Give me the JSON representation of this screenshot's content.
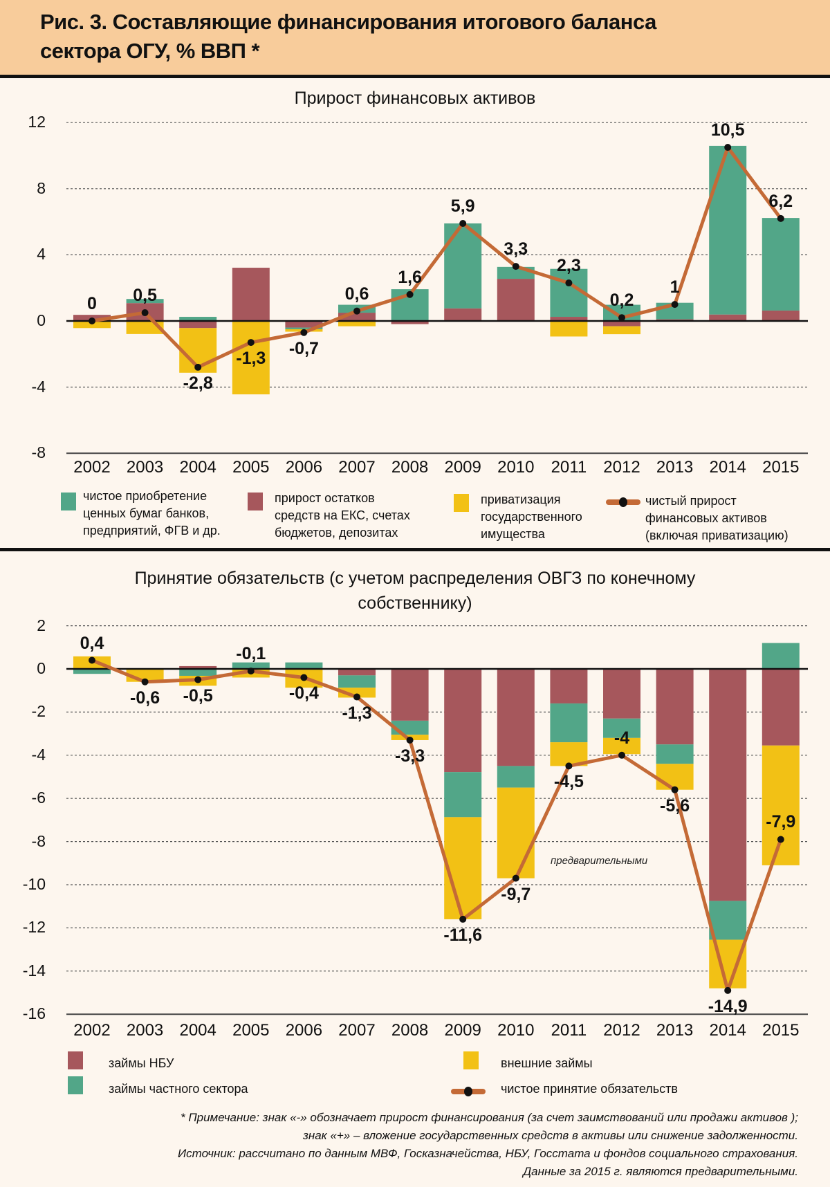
{
  "header": {
    "line1": "Рис. 3. Составляющие финансирования итогового баланса",
    "line2": "сектора ОГУ, % ВВП *"
  },
  "colors": {
    "green": "#52a688",
    "red": "#a6575c",
    "yellow": "#f2c115",
    "line": "#c46a36",
    "header_bg": "#f8cc9b",
    "bg": "#fdf6ee"
  },
  "chart_data": [
    {
      "type": "bar",
      "stacked": true,
      "title": "Прирост финансовых активов",
      "categories": [
        "2002",
        "2003",
        "2004",
        "2005",
        "2006",
        "2007",
        "2008",
        "2009",
        "2010",
        "2011",
        "2012",
        "2013",
        "2014",
        "2015"
      ],
      "ylim": [
        -8,
        12
      ],
      "yticks": [
        "12",
        "8",
        "4",
        "0",
        "-4",
        "-8"
      ],
      "ytick_values": [
        12,
        8,
        4,
        0,
        -4,
        -8
      ],
      "grid": true,
      "series": [
        {
          "name": "прирост остатков средств на ЕКС, счетах бюджетов, депозитах",
          "color": "red",
          "values": [
            0.37,
            1.08,
            -0.43,
            3.22,
            -0.4,
            0.5,
            -0.19,
            0.76,
            2.55,
            0.25,
            -0.32,
            0.1,
            0.39,
            0.63
          ]
        },
        {
          "name": "чистое приобретение ценных бумаг банков, предприятий, ФГВ и др.",
          "color": "green",
          "values": [
            0,
            0.25,
            0.25,
            0,
            -0.1,
            0.48,
            1.92,
            5.14,
            0.72,
            2.9,
            0.98,
            1.0,
            10.2,
            5.6
          ]
        },
        {
          "name": "приватизация государственного имущества",
          "color": "yellow",
          "values": [
            -0.43,
            -0.79,
            -2.7,
            -4.44,
            -0.15,
            -0.32,
            0,
            0,
            0,
            -0.94,
            -0.48,
            0,
            0,
            0
          ]
        }
      ],
      "line": {
        "name": "чистый прирост финансовых активов (включая приватизацию)",
        "values": [
          0,
          0.5,
          -2.8,
          -1.3,
          -0.7,
          0.6,
          1.6,
          5.9,
          3.3,
          2.3,
          0.2,
          1,
          10.5,
          6.2
        ],
        "labels": [
          "0",
          "0,5",
          "-2,8",
          "-1,3",
          "-0,7",
          "0,6",
          "1,6",
          "5,9",
          "3,3",
          "2,3",
          "0,2",
          "1",
          "10,5",
          "6,2"
        ]
      },
      "legend": [
        {
          "color": "green",
          "text": [
            "чистое приобретение",
            "ценных бумаг банков,",
            "предприятий, ФГВ и др."
          ]
        },
        {
          "color": "red",
          "text": [
            "прирост остатков",
            "средств на ЕКС, счетах",
            "бюджетов, депозитах"
          ]
        },
        {
          "color": "yellow",
          "text": [
            "приватизация",
            "государственного",
            "имущества"
          ]
        },
        {
          "color": "line",
          "text": [
            "чистый прирост",
            "финансовых активов",
            "(включая приватизацию)"
          ]
        }
      ],
      "legend_position": "bottom"
    },
    {
      "type": "bar",
      "stacked": true,
      "title_lines": [
        "Принятие обязательств (с учетом распределения ОВГЗ по конечному",
        "собственнику)"
      ],
      "categories": [
        "2002",
        "2003",
        "2004",
        "2005",
        "2006",
        "2007",
        "2008",
        "2009",
        "2010",
        "2011",
        "2012",
        "2013",
        "2014",
        "2015"
      ],
      "ylim": [
        -16,
        2
      ],
      "yticks": [
        "2",
        "0",
        "-2",
        "-4",
        "-6",
        "-8",
        "-10",
        "-12",
        "-14",
        "-16"
      ],
      "ytick_values": [
        2,
        0,
        -2,
        -4,
        -6,
        -8,
        -10,
        -12,
        -14,
        -16
      ],
      "grid": true,
      "series": [
        {
          "name": "займы НБУ",
          "color": "red",
          "values": [
            0,
            0,
            0.13,
            0,
            0,
            -0.3,
            -2.4,
            -4.78,
            -4.5,
            -1.6,
            -2.3,
            -3.5,
            -10.75,
            -3.55
          ]
        },
        {
          "name": "займы частного сектора",
          "color": "green",
          "values": [
            -0.23,
            0,
            -0.32,
            0.3,
            0.3,
            -0.57,
            -0.65,
            -2.09,
            -1.0,
            -1.8,
            -0.9,
            -0.9,
            -1.8,
            1.2
          ]
        },
        {
          "name": "внешние займы",
          "color": "yellow",
          "values": [
            0.58,
            -0.6,
            -0.46,
            -0.4,
            -0.87,
            -0.46,
            -0.25,
            -4.73,
            -4.2,
            -1.1,
            -0.75,
            -1.2,
            -2.25,
            -5.55
          ]
        }
      ],
      "line": {
        "name": "чистое принятие обязательств",
        "values": [
          0.4,
          -0.6,
          -0.5,
          -0.1,
          -0.4,
          -1.3,
          -3.3,
          -11.6,
          -9.7,
          -4.5,
          -4,
          -5.6,
          -14.9,
          -7.9
        ],
        "labels": [
          "0,4",
          "-0,6",
          "-0,5",
          "-0,1",
          "-0,4",
          "-1,3",
          "-3,3",
          "-11,6",
          "-9,7",
          "-4,5",
          "-4",
          "-5,6",
          "-14,9",
          "-7,9"
        ]
      },
      "stray_text": "предварительными",
      "legend": [
        {
          "color": "red",
          "text": "займы НБУ"
        },
        {
          "color": "yellow",
          "text": "внешние займы"
        },
        {
          "color": "green",
          "text": "займы частного сектора"
        },
        {
          "color": "line",
          "text": "чистое принятие обязательств"
        }
      ],
      "legend_position": "bottom"
    }
  ],
  "footnote": [
    "* Примечание: знак «-» обозначает прирост финансирования (за счет заимствований или продажи активов );",
    "знак «+» – вложение государственных средств в активы или снижение задолженности.",
    "Источник: рассчитано по данным МВФ, Госказначейства, НБУ, Госстата и фондов социального страхования.",
    "Данные за 2015 г. являются предварительными."
  ]
}
